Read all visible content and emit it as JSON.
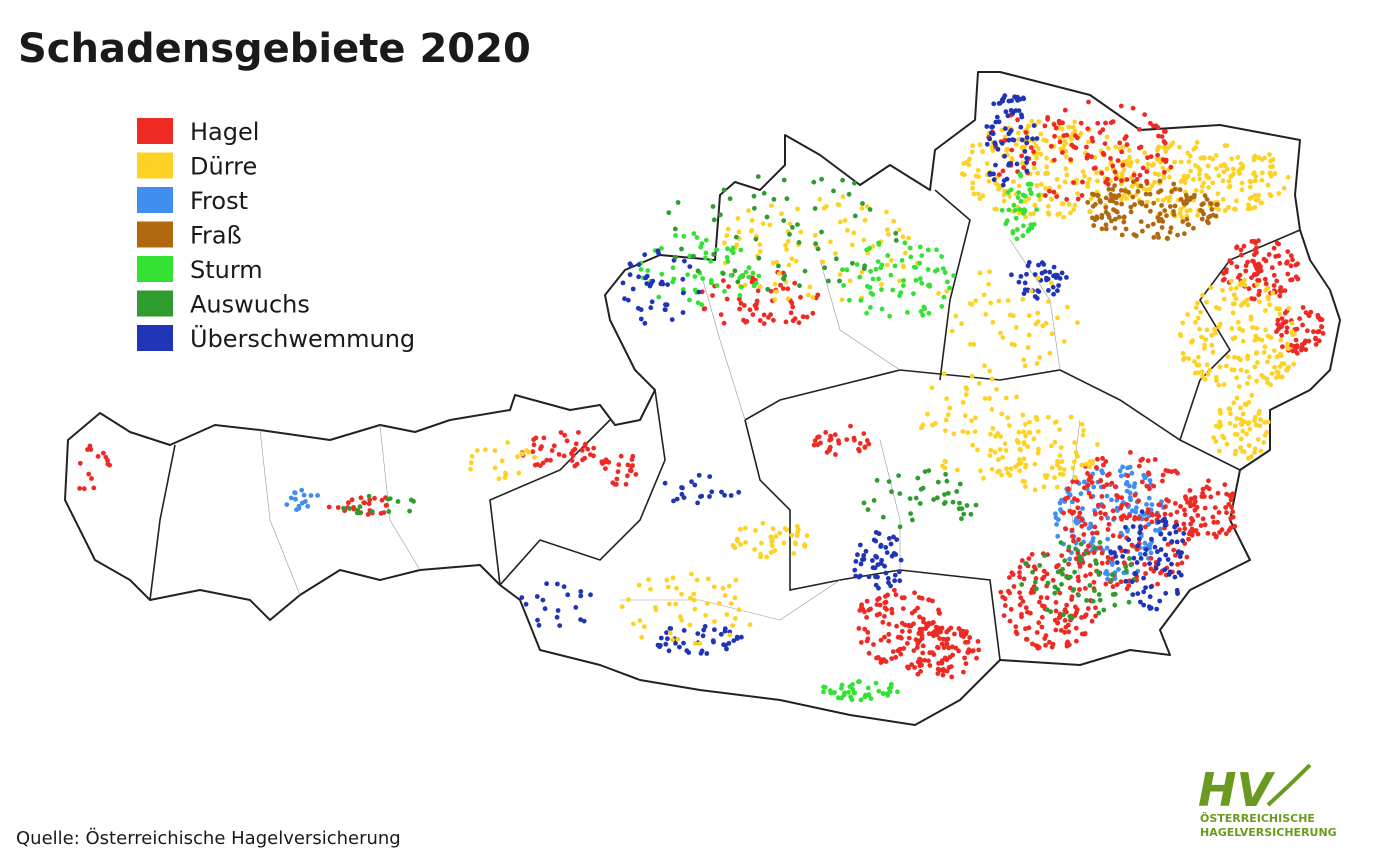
{
  "title": "Schadensgebiete 2020",
  "legend": [
    {
      "label": "Hagel",
      "color": "#ee2a24"
    },
    {
      "label": "Dürre",
      "color": "#fdd225"
    },
    {
      "label": "Frost",
      "color": "#3f8ef0"
    },
    {
      "label": "Fraß",
      "color": "#b0690f"
    },
    {
      "label": "Sturm",
      "color": "#33e233"
    },
    {
      "label": "Auswuchs",
      "color": "#2f9c2f"
    },
    {
      "label": "Überschwemmung",
      "color": "#1f35b5"
    }
  ],
  "source": "Quelle: Österreichische Hagelversicherung",
  "logo": {
    "mark": "HV",
    "line1": "ÖSTERREICHISCHE",
    "line2": "HAGELVERSICHERUNG"
  }
}
